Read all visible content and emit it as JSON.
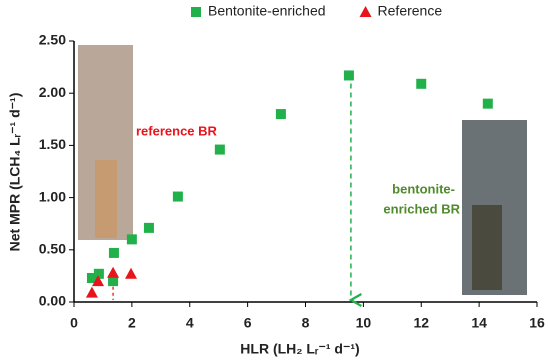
{
  "chart_data": {
    "type": "scatter",
    "xlabel": "HLR (LH₂ Lᵣ⁻¹ d⁻¹)",
    "ylabel": "Net MPR (LCH₄ Lᵣ⁻¹ d⁻¹)",
    "annotations": [
      "reference BR",
      "bentonite-",
      "enriched BR"
    ],
    "xlim": [
      0,
      16
    ],
    "xticks": [
      0,
      2,
      4,
      6,
      8,
      10,
      12,
      14,
      16
    ],
    "ylim": [
      0,
      2.5
    ],
    "yticks": [
      {
        "value": 0,
        "label": "0.00"
      },
      {
        "value": 0.5,
        "label": "0.50"
      },
      {
        "value": 1,
        "label": "1.00"
      },
      {
        "value": 1.5,
        "label": "1.50"
      },
      {
        "value": 2,
        "label": "2.00"
      },
      {
        "value": 2.5,
        "label": "2.50"
      }
    ],
    "series": [
      {
        "name": "Bentonite-enriched",
        "color": "#22b04b",
        "marker": "square",
        "x": [
          0.62,
          0.86,
          1.35,
          1.38,
          2.0,
          2.59,
          3.59,
          5.04,
          7.15,
          9.5,
          12.0,
          14.3
        ],
        "values": [
          0.23,
          0.27,
          0.2,
          0.47,
          0.6,
          0.71,
          1.01,
          1.46,
          1.8,
          2.17,
          2.09,
          1.9
        ]
      },
      {
        "name": "Reference",
        "color": "#e8141b",
        "marker": "triangle",
        "x": [
          0.62,
          0.83,
          1.35,
          1.97
        ],
        "values": [
          0.09,
          0.2,
          0.28,
          0.27
        ]
      }
    ]
  }
}
